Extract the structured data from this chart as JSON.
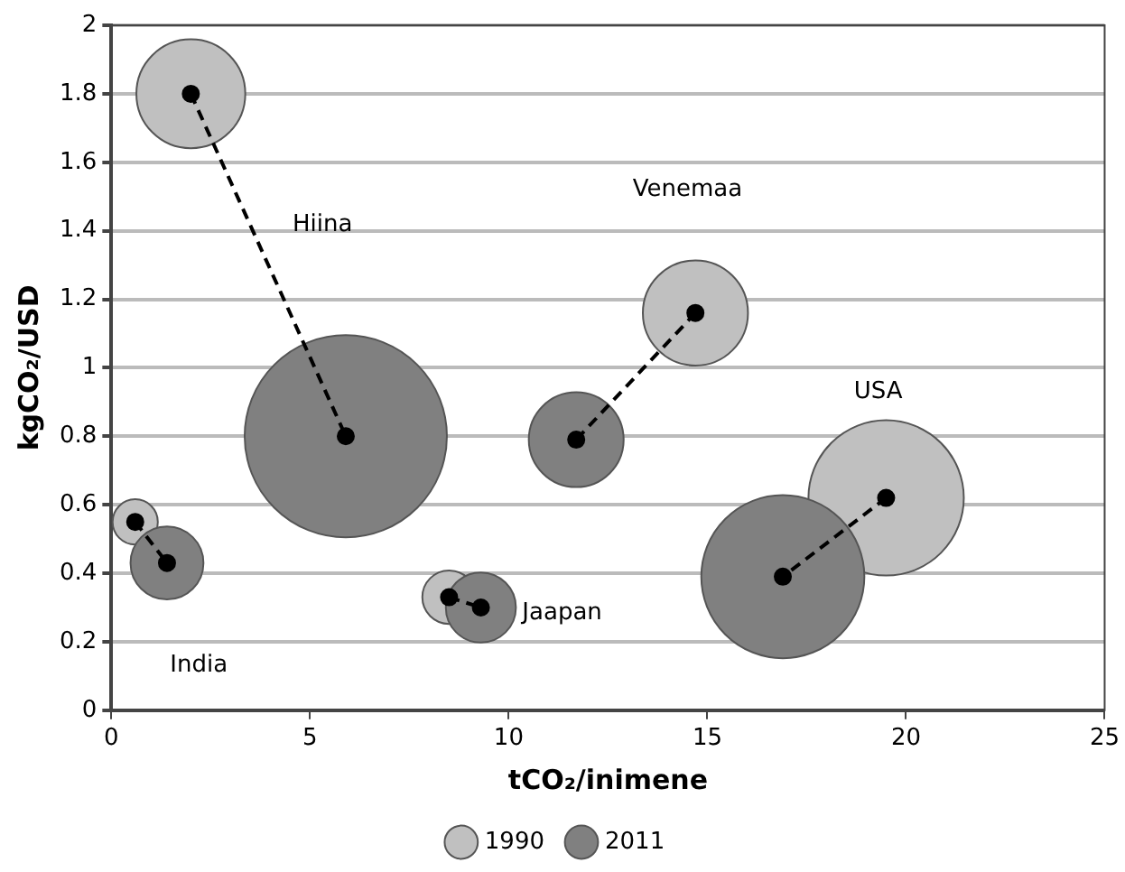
{
  "chart_data": {
    "type": "bubble",
    "xlabel": "tCO₂/inimene",
    "ylabel": "kgCO₂/USD",
    "xlim": [
      0,
      25
    ],
    "ylim": [
      0,
      2
    ],
    "xticks": [
      0,
      5,
      10,
      15,
      20,
      25
    ],
    "yticks": [
      0,
      0.2,
      0.4,
      0.6,
      0.8,
      1,
      1.2,
      1.4,
      1.6,
      1.8,
      2
    ],
    "grid": "y",
    "legend": "bottom",
    "series": [
      {
        "name": "1990",
        "color": "#c0c0c0",
        "x": [
          2.0,
          0.6,
          8.5,
          14.7,
          19.5
        ],
        "values": [
          1.8,
          0.55,
          0.33,
          1.16,
          0.62
        ],
        "sizes": [
          0.29,
          0.05,
          0.07,
          0.27,
          0.59
        ]
      },
      {
        "name": "2011",
        "color": "#808080",
        "x": [
          5.9,
          1.4,
          9.3,
          11.7,
          16.9
        ],
        "values": [
          0.8,
          0.43,
          0.3,
          0.79,
          0.39
        ],
        "sizes": [
          1,
          0.13,
          0.12,
          0.22,
          0.65
        ]
      },
      {
        "type": "line",
        "color": "#000000",
        "line_style": "dashed",
        "marker": "circle",
        "x": [
          2.0,
          5.9
        ],
        "values": [
          1.8,
          0.8
        ]
      },
      {
        "type": "line",
        "color": "#000000",
        "line_style": "dashed",
        "marker": "circle",
        "x": [
          0.6,
          1.4
        ],
        "values": [
          0.55,
          0.43
        ]
      },
      {
        "type": "line",
        "color": "#000000",
        "line_style": "dashed",
        "marker": "circle",
        "x": [
          8.5,
          9.3
        ],
        "values": [
          0.33,
          0.3
        ]
      },
      {
        "type": "line",
        "color": "#000000",
        "line_style": "dashed",
        "marker": "circle",
        "x": [
          14.7,
          11.7
        ],
        "values": [
          1.16,
          0.79
        ]
      },
      {
        "type": "line",
        "color": "#000000",
        "line_style": "dashed",
        "marker": "circle",
        "x": [
          19.5,
          16.9
        ],
        "values": [
          0.62,
          0.39
        ]
      }
    ],
    "annotations": [
      {
        "text": "Hiina",
        "x": 3.95,
        "y": 1.3
      },
      "Venemaa",
      "USA",
      {
        "text": "Jaapan",
        "x": 9.3,
        "y": 0.3
      },
      "India"
    ]
  }
}
